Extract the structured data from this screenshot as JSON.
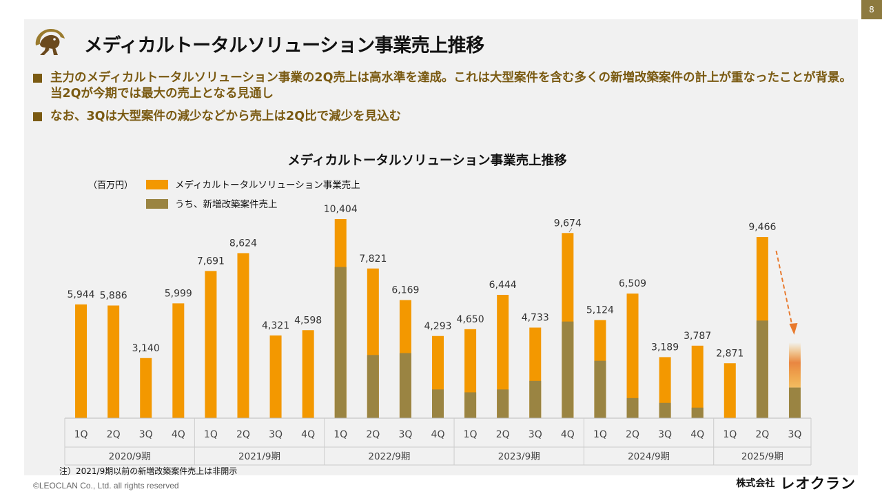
{
  "page_number": "8",
  "title": "メディカルトータルソリューション事業売上推移",
  "bullets": [
    "主力のメディカルトータルソリューション事業の2Q売上は高水準を達成。これは大型案件を含む多くの新増改築案件の計上が重なったことが背景。当2Qが今期では最大の売上となる見通し",
    "なお、3Qは大型案件の減少などから売上は2Q比で減少を見込む"
  ],
  "footnote": "注）2021/9期以前の新増改築案件売上は非開示",
  "copyright": "©LEOCLAN Co., Ltd. all rights reserved",
  "company": {
    "prefix": "株式会社",
    "name": "レオクラン"
  },
  "colors": {
    "total": "#f39800",
    "new_build": "#9a8442",
    "accent": "#7a5a12",
    "arrow": "#e87a2e"
  },
  "icons": {
    "logo": "lion-logo-icon",
    "forecast": "dashed-arrow-down-icon"
  },
  "chart_data": {
    "type": "bar",
    "title": "メディカルトータルソリューション事業売上推移",
    "unit_label": "（百万円）",
    "legend_placement": "top-left",
    "ylim": [
      0,
      11000
    ],
    "grid": false,
    "series": [
      {
        "name": "メディカルトータルソリューション事業売上",
        "color": "#f39800",
        "values": [
          5944,
          5886,
          3140,
          5999,
          7691,
          8624,
          4321,
          4598,
          10404,
          7821,
          6169,
          4293,
          4650,
          6444,
          4733,
          9674,
          5124,
          6509,
          3189,
          3787,
          2871,
          9466,
          null
        ]
      },
      {
        "name": "うち、新増改築案件売上",
        "color": "#9a8442",
        "values": [
          null,
          null,
          null,
          null,
          null,
          null,
          null,
          null,
          7900,
          3300,
          3400,
          1500,
          1350,
          1500,
          1950,
          5050,
          3000,
          1050,
          800,
          550,
          null,
          5100,
          1600
        ]
      }
    ],
    "categories": [
      "1Q",
      "2Q",
      "3Q",
      "4Q",
      "1Q",
      "2Q",
      "3Q",
      "4Q",
      "1Q",
      "2Q",
      "3Q",
      "4Q",
      "1Q",
      "2Q",
      "3Q",
      "4Q",
      "1Q",
      "2Q",
      "3Q",
      "4Q",
      "1Q",
      "2Q",
      "3Q"
    ],
    "data_labels": [
      "5,944",
      "5,886",
      "3,140",
      "5,999",
      "7,691",
      "8,624",
      "4,321",
      "4,598",
      "10,404",
      "7,821",
      "6,169",
      "4,293",
      "4,650",
      "6,444",
      "4,733",
      "9,674",
      "5,124",
      "6,509",
      "3,189",
      "3,787",
      "2,871",
      "9,466",
      ""
    ],
    "groups": [
      {
        "label": "2020/9期",
        "start": 0,
        "count": 4
      },
      {
        "label": "2021/9期",
        "start": 4,
        "count": 4
      },
      {
        "label": "2022/9期",
        "start": 8,
        "count": 4
      },
      {
        "label": "2023/9期",
        "start": 12,
        "count": 4
      },
      {
        "label": "2024/9期",
        "start": 16,
        "count": 4
      },
      {
        "label": "2025/9期",
        "start": 20,
        "count": 3
      }
    ],
    "forecast_index": 22
  }
}
